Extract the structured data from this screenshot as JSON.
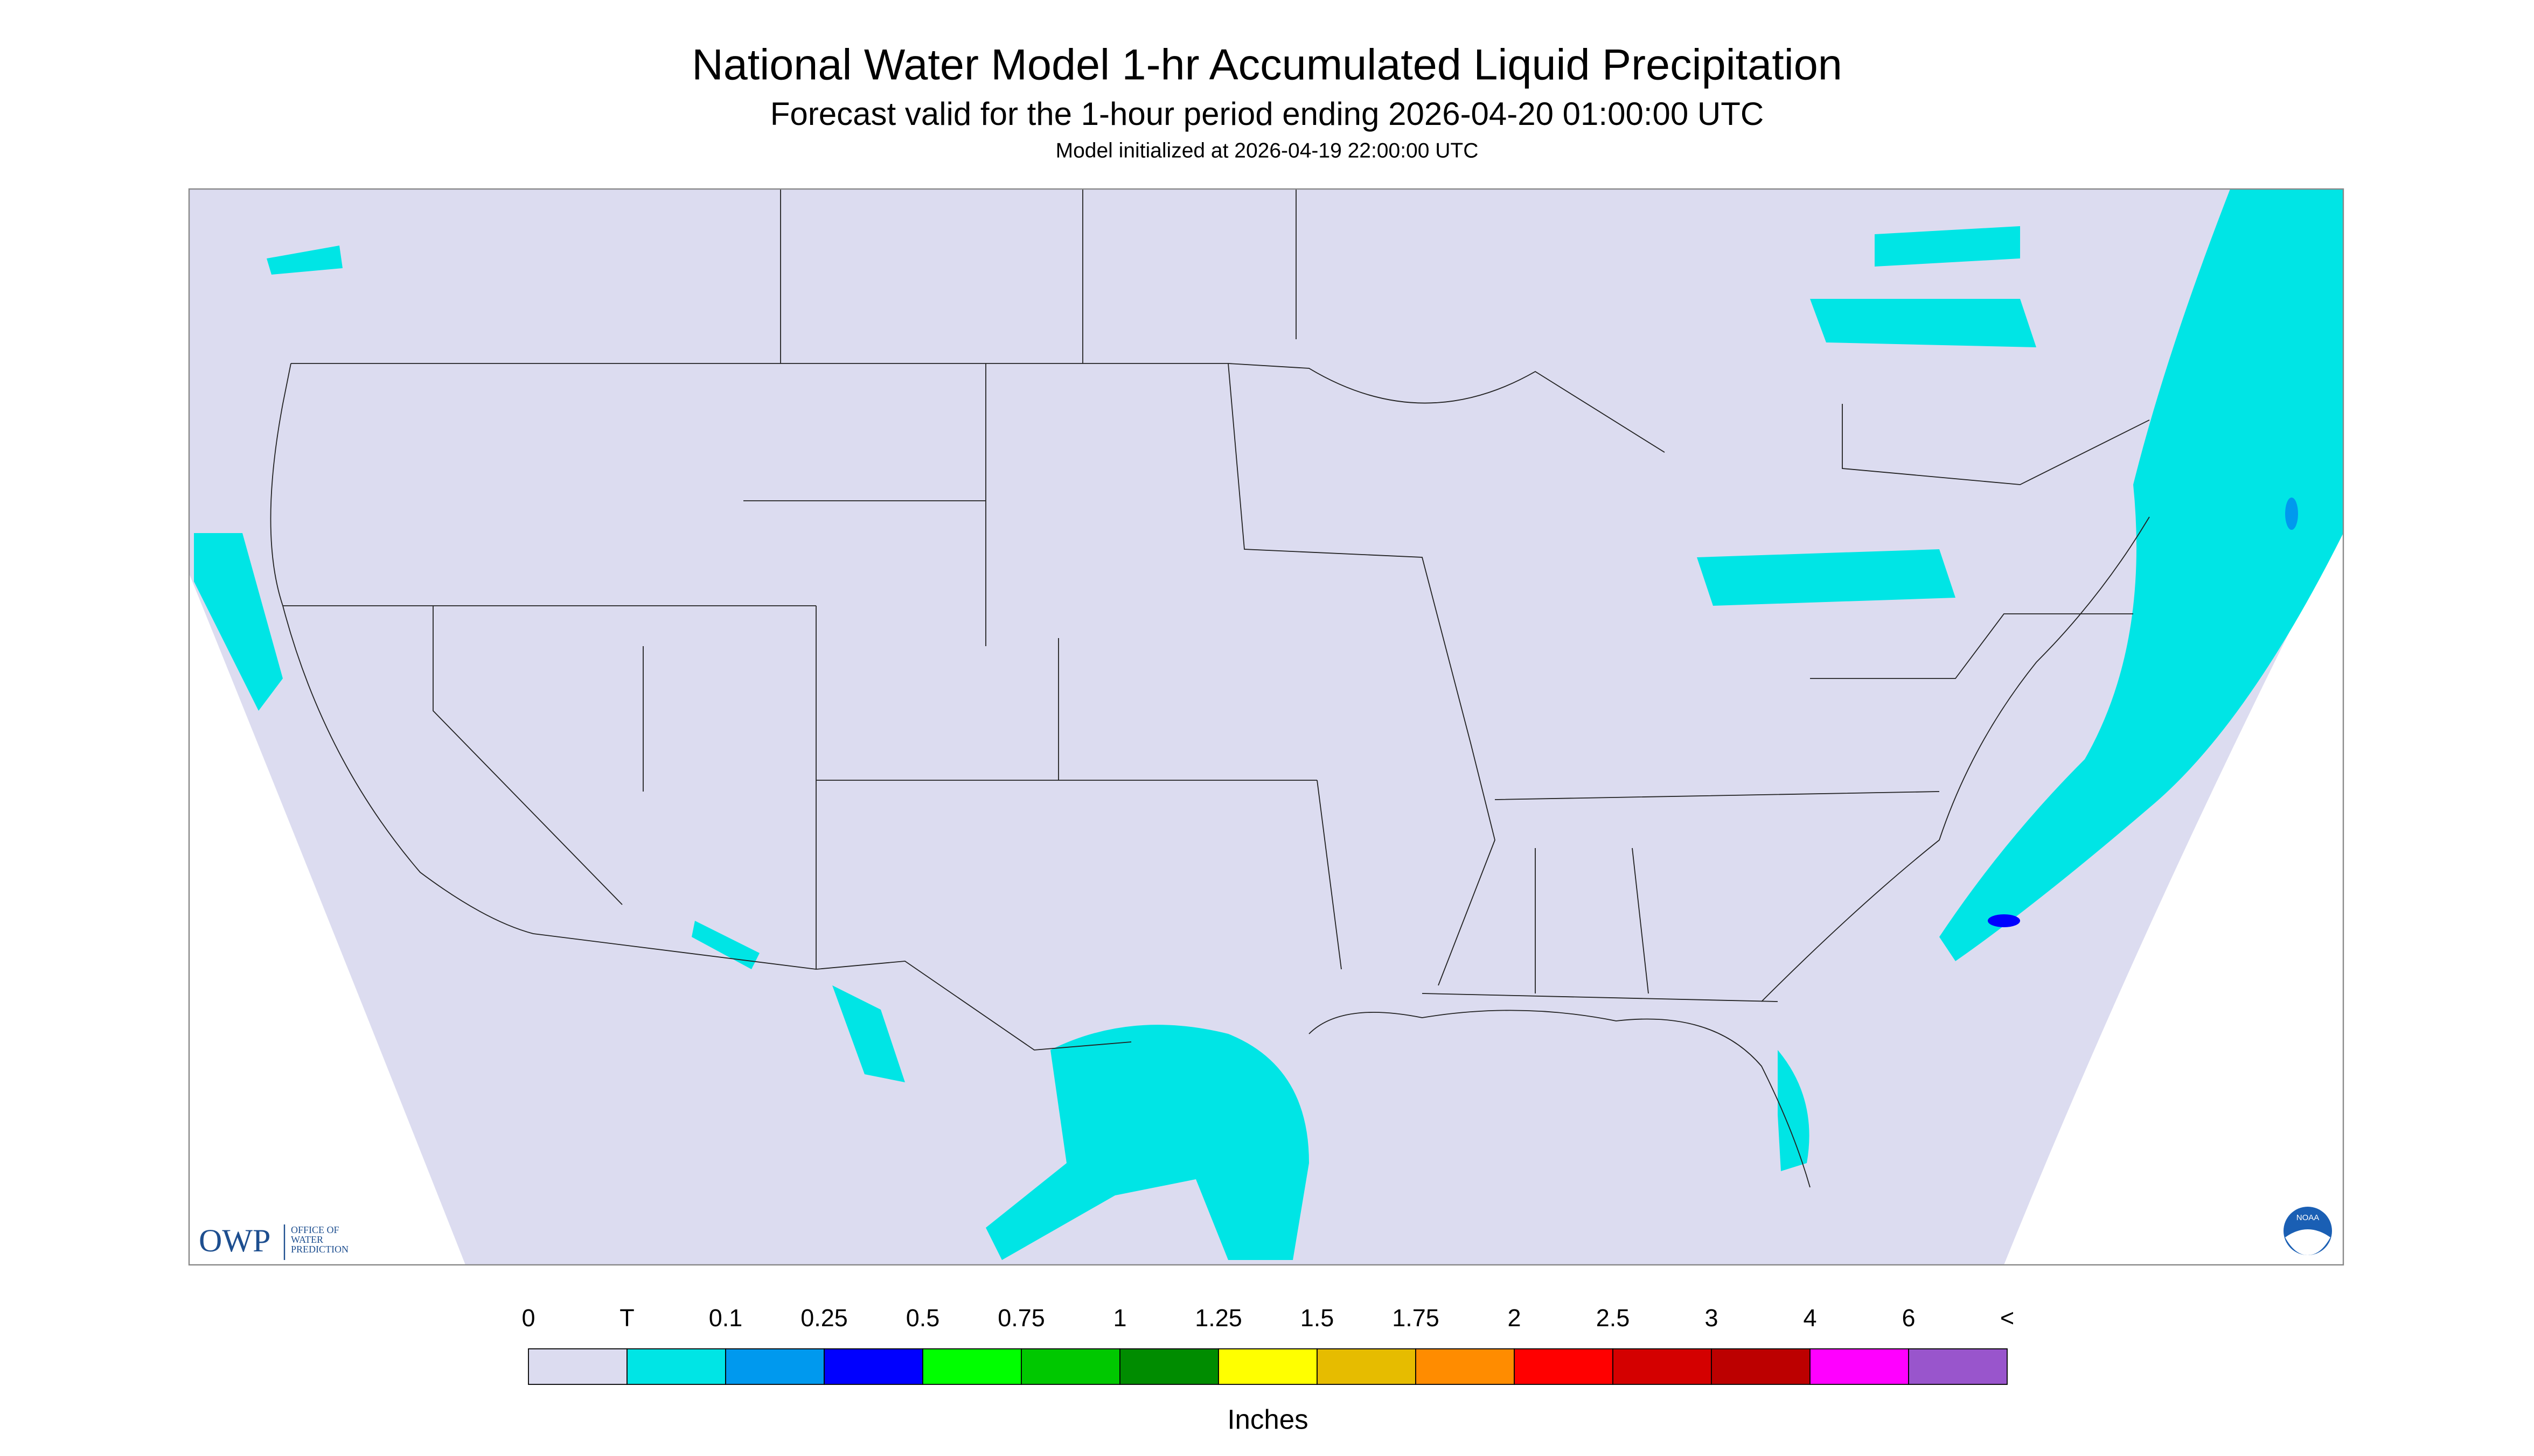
{
  "header": {
    "title": "National Water Model 1-hr Accumulated Liquid Precipitation",
    "subtitle": "Forecast valid for the 1-hour period ending 2026-04-20 01:00:00 UTC",
    "initialized": "Model initialized at 2026-04-19 22:00:00 UTC"
  },
  "logo": {
    "owp": "OWP",
    "owp_lines": [
      "OFFICE OF",
      "WATER",
      "PREDICTION"
    ],
    "noaa": "NOAA"
  },
  "legend": {
    "labels": [
      "0",
      "T",
      "0.1",
      "0.25",
      "0.5",
      "0.75",
      "1",
      "1.25",
      "1.5",
      "1.75",
      "2",
      "2.5",
      "3",
      "4",
      "6",
      "<"
    ],
    "colors": [
      "#dcdcf0",
      "#00e5e5",
      "#0099ee",
      "#0000ff",
      "#00ff00",
      "#00c800",
      "#008c00",
      "#ffff00",
      "#e6bc00",
      "#ff8c00",
      "#ff0000",
      "#d40000",
      "#bc0000",
      "#ff00ff",
      "#9955cc"
    ],
    "unit": "Inches"
  }
}
